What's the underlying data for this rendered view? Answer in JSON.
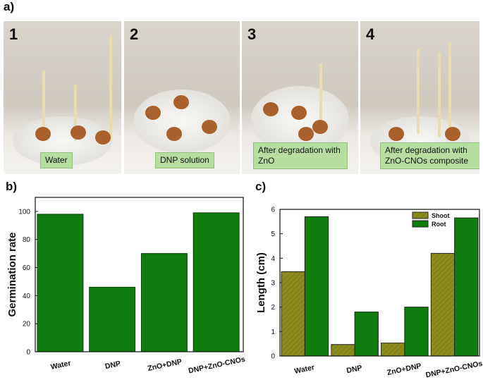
{
  "panels": {
    "label": "a)",
    "photos": [
      {
        "number": "1",
        "caption": "Water"
      },
      {
        "number": "2",
        "caption": "DNP solution"
      },
      {
        "number": "3",
        "caption": "After degradation with ZnO"
      },
      {
        "number": "4",
        "caption": "After degradation with ZnO-CNOs composite"
      }
    ]
  },
  "chart_data": [
    {
      "type": "bar",
      "label": "b)",
      "ylabel": "Germination rate",
      "categories": [
        "Water",
        "DNP",
        "ZnO+DNP",
        "DNP+ZnO-CNOs"
      ],
      "values": [
        98,
        46,
        70,
        99
      ],
      "color": "#0e7d0e",
      "ylim": [
        0,
        110
      ],
      "yticks": [
        0,
        20,
        40,
        60,
        80,
        100
      ]
    },
    {
      "type": "grouped_bar",
      "label": "c)",
      "ylabel": "Length (cm)",
      "categories": [
        "Water",
        "DNP",
        "ZnO+DNP",
        "DNP+ZnO-CNOs"
      ],
      "series": [
        {
          "name": "Shoot",
          "color": "#8c8c1e",
          "hatch": true,
          "values": [
            3.45,
            0.47,
            0.53,
            4.2
          ]
        },
        {
          "name": "Root",
          "color": "#0e7d0e",
          "hatch": false,
          "values": [
            5.7,
            1.8,
            2.0,
            5.65
          ]
        }
      ],
      "ylim": [
        0,
        6
      ],
      "yticks": [
        0,
        1,
        2,
        3,
        4,
        5,
        6
      ],
      "legend": "upper right"
    }
  ]
}
